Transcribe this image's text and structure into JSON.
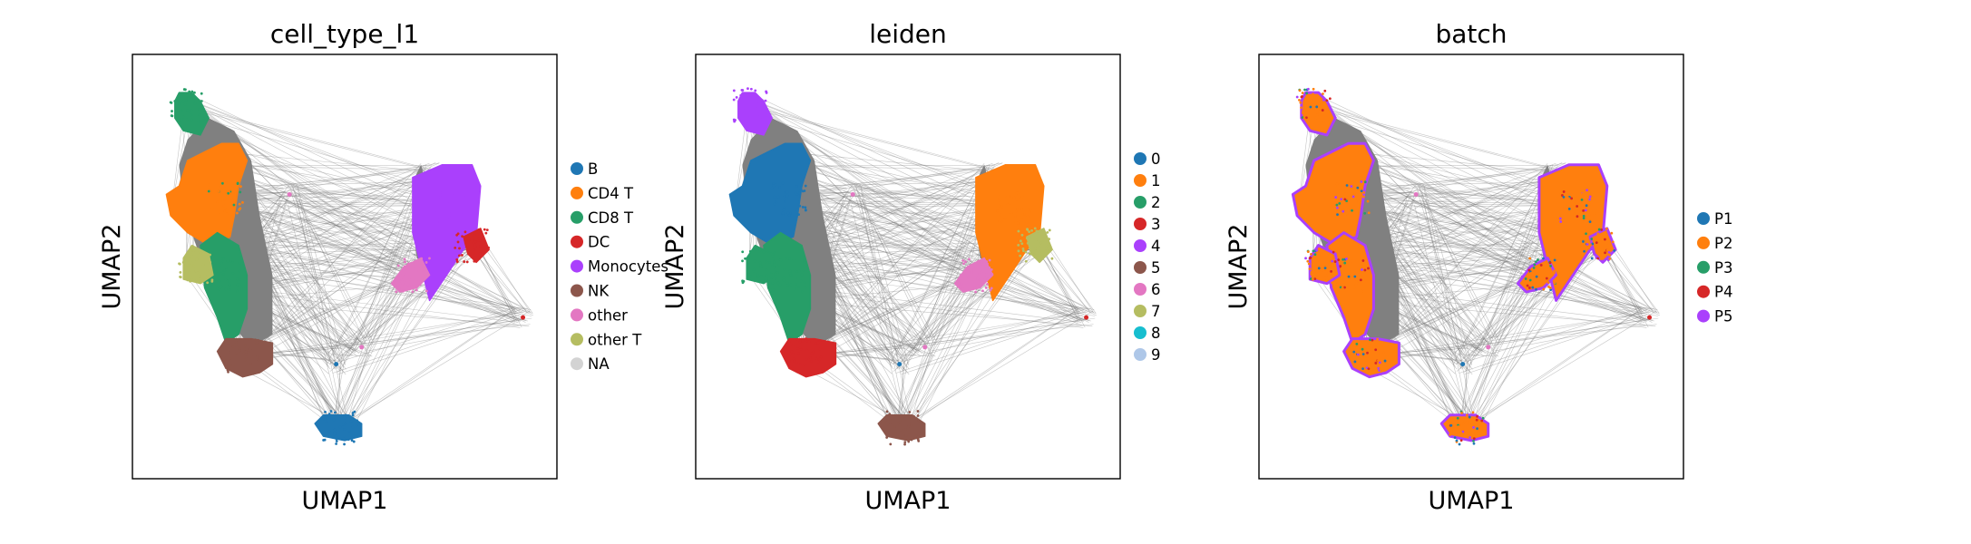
{
  "chart_data": [
    {
      "type": "scatter",
      "title": "cell_type_l1",
      "xlabel": "UMAP1",
      "ylabel": "UMAP2",
      "legend_position": "right",
      "grid": false,
      "series": [
        {
          "name": "B",
          "color": "#1f77b4"
        },
        {
          "name": "CD4 T",
          "color": "#ff7f0e"
        },
        {
          "name": "CD8 T",
          "color": "#279e68"
        },
        {
          "name": "DC",
          "color": "#d62728"
        },
        {
          "name": "Monocytes",
          "color": "#aa40fc"
        },
        {
          "name": "NK",
          "color": "#8c564b"
        },
        {
          "name": "other",
          "color": "#e377c2"
        },
        {
          "name": "other T",
          "color": "#b5bd61"
        },
        {
          "name": "NA",
          "color": "#d3d3d3"
        }
      ]
    },
    {
      "type": "scatter",
      "title": "leiden",
      "xlabel": "UMAP1",
      "ylabel": "UMAP2",
      "legend_position": "right",
      "grid": false,
      "series": [
        {
          "name": "0",
          "color": "#1f77b4"
        },
        {
          "name": "1",
          "color": "#ff7f0e"
        },
        {
          "name": "2",
          "color": "#279e68"
        },
        {
          "name": "3",
          "color": "#d62728"
        },
        {
          "name": "4",
          "color": "#aa40fc"
        },
        {
          "name": "5",
          "color": "#8c564b"
        },
        {
          "name": "6",
          "color": "#e377c2"
        },
        {
          "name": "7",
          "color": "#b5bd61"
        },
        {
          "name": "8",
          "color": "#17becf"
        },
        {
          "name": "9",
          "color": "#aec7e8"
        }
      ]
    },
    {
      "type": "scatter",
      "title": "batch",
      "xlabel": "UMAP1",
      "ylabel": "UMAP2",
      "legend_position": "right",
      "grid": false,
      "series": [
        {
          "name": "P1",
          "color": "#1f77b4"
        },
        {
          "name": "P2",
          "color": "#ff7f0e"
        },
        {
          "name": "P3",
          "color": "#279e68"
        },
        {
          "name": "P4",
          "color": "#d62728"
        },
        {
          "name": "P5",
          "color": "#aa40fc"
        }
      ]
    }
  ]
}
